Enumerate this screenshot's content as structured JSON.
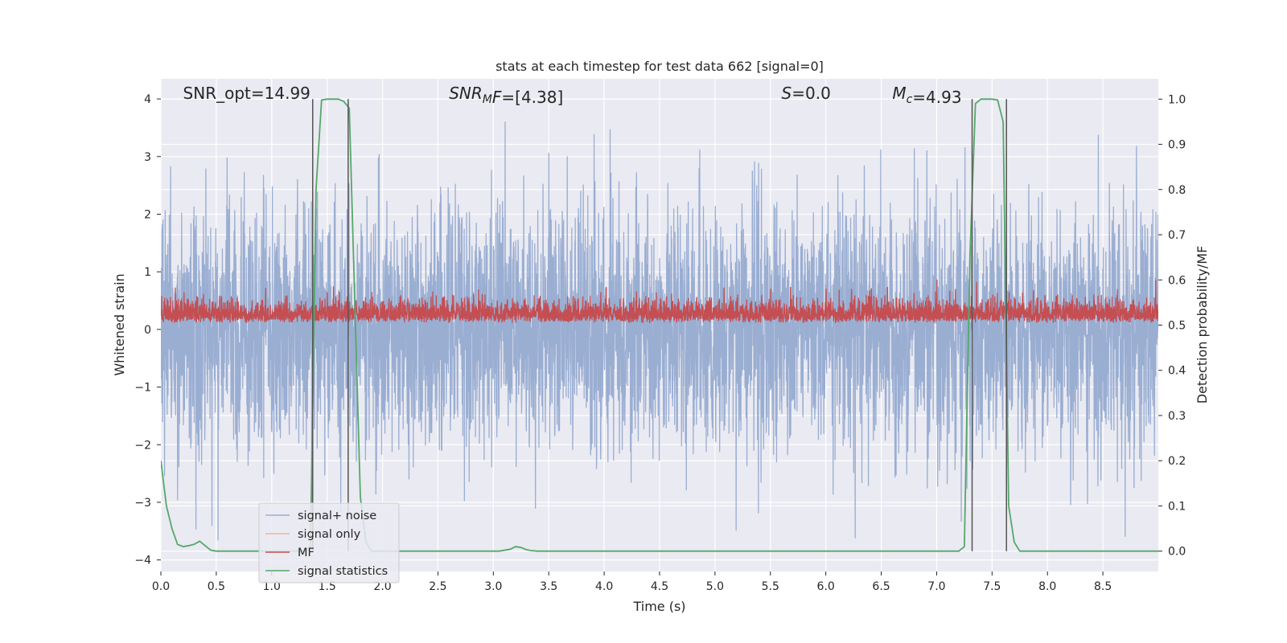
{
  "chart_data": {
    "type": "line",
    "title": "stats at each timestep for test data 662 [signal=0]",
    "xlabel": "Time (s)",
    "ylabel_left": "Whitened strain",
    "ylabel_right": "Detection probability/MF",
    "xlim": [
      0.0,
      9.0
    ],
    "ylim_left": [
      -4.2,
      4.35
    ],
    "ylim_right": [
      -0.045,
      1.045
    ],
    "x_ticks": [
      0.0,
      0.5,
      1.0,
      1.5,
      2.0,
      2.5,
      3.0,
      3.5,
      4.0,
      4.5,
      5.0,
      5.5,
      6.0,
      6.5,
      7.0,
      7.5,
      8.0,
      8.5
    ],
    "x_tick_labels": [
      "0.0",
      "0.5",
      "1.0",
      "1.5",
      "2.0",
      "2.5",
      "3.0",
      "3.5",
      "4.0",
      "4.5",
      "5.0",
      "5.5",
      "6.0",
      "6.5",
      "7.0",
      "7.5",
      "8.0",
      "8.5"
    ],
    "y_left_ticks": [
      4,
      3,
      2,
      1,
      0,
      -1,
      -2,
      -3,
      -4
    ],
    "y_left_tick_labels": [
      "4",
      "3",
      "2",
      "1",
      "0",
      "−1",
      "−2",
      "−3",
      "−4"
    ],
    "y_right_ticks": [
      1.0,
      0.9,
      0.8,
      0.7,
      0.6,
      0.5,
      0.4,
      0.3,
      0.2,
      0.1,
      0.0
    ],
    "y_right_tick_labels": [
      "1.0",
      "0.9",
      "0.8",
      "0.7",
      "0.6",
      "0.5",
      "0.4",
      "0.3",
      "0.2",
      "0.1",
      "0.0"
    ],
    "grid": true,
    "legend_position": "lower-left",
    "annotations": [
      {
        "name": "snr-opt-annotation",
        "parts": [
          {
            "t": "SNR_opt=14.99"
          }
        ],
        "x": 0.2,
        "y": 4.0
      },
      {
        "name": "snr-mf-annotation",
        "parts": [
          {
            "t": "SNR",
            "i": true
          },
          {
            "t": "M",
            "i": true,
            "sub": true
          },
          {
            "t": "F",
            "i": true
          },
          {
            "t": "=[4.38]"
          }
        ],
        "x": 2.6,
        "y": 4.0
      },
      {
        "name": "s-annotation",
        "parts": [
          {
            "t": "S",
            "i": true
          },
          {
            "t": "=0.0"
          }
        ],
        "x": 5.6,
        "y": 4.0
      },
      {
        "name": "mc-annotation",
        "parts": [
          {
            "t": "M",
            "i": true
          },
          {
            "t": "c",
            "i": true,
            "sub": true
          },
          {
            "t": "=4.93"
          }
        ],
        "x": 6.6,
        "y": 4.0
      }
    ],
    "series": [
      {
        "name": "signal+ noise",
        "axis": "left",
        "color": "#9aaed2",
        "kind": "noise",
        "x_range": [
          0.0,
          9.0
        ],
        "n_samples": 4608,
        "std": 1.0,
        "range": [
          -3.7,
          4.0
        ]
      },
      {
        "name": "signal only",
        "axis": "left",
        "color": "#eeb49c",
        "kind": "empty",
        "x": [],
        "y": []
      },
      {
        "name": "MF",
        "axis": "right",
        "color": "#c44e52",
        "kind": "noise",
        "x_range": [
          0.0,
          9.0
        ],
        "n_samples": 4608,
        "baseline": 0.505,
        "mean": 0.53,
        "range": [
          0.495,
          0.6
        ]
      },
      {
        "name": "signal statistics",
        "axis": "right",
        "color": "#55a868",
        "kind": "line",
        "x": [
          0.0,
          0.05,
          0.1,
          0.15,
          0.2,
          0.25,
          0.3,
          0.35,
          0.4,
          0.45,
          0.5,
          1.3,
          1.35,
          1.4,
          1.45,
          1.5,
          1.55,
          1.6,
          1.65,
          1.7,
          1.75,
          1.8,
          1.85,
          1.9,
          2.0,
          3.05,
          3.15,
          3.2,
          3.25,
          3.3,
          3.35,
          3.4,
          7.2,
          7.25,
          7.3,
          7.35,
          7.4,
          7.45,
          7.5,
          7.55,
          7.6,
          7.65,
          7.7,
          7.75,
          7.8,
          9.0
        ],
        "y": [
          0.2,
          0.1,
          0.05,
          0.015,
          0.01,
          0.012,
          0.015,
          0.022,
          0.012,
          0.002,
          0.0,
          0.0,
          0.01,
          0.8,
          0.998,
          1.0,
          1.0,
          1.0,
          0.995,
          0.98,
          0.55,
          0.12,
          0.02,
          0.0,
          0.0,
          0.0,
          0.004,
          0.01,
          0.008,
          0.003,
          0.001,
          0.0,
          0.0,
          0.01,
          0.65,
          0.99,
          1.0,
          1.0,
          1.0,
          0.998,
          0.95,
          0.1,
          0.02,
          0.0,
          0.0,
          0.0
        ]
      }
    ],
    "detection_markers_x": [
      1.37,
      1.69,
      7.32,
      7.63
    ],
    "detection_markers_color": "#555555",
    "detection_marker_ylim": [
      0.0,
      1.0
    ],
    "colors": {
      "axes_background": "#eaeaf2",
      "grid": "#ffffff",
      "text": "#262626"
    }
  }
}
